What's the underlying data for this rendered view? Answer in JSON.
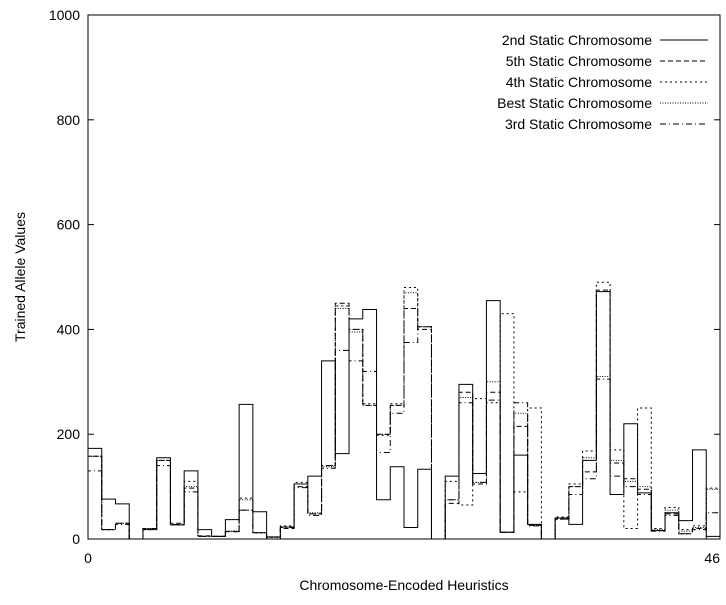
{
  "chart_data": {
    "type": "line",
    "step": true,
    "xlabel": "Chromosome-Encoded Heuristics",
    "ylabel": "Trained Allele Values",
    "xlim": [
      0,
      46
    ],
    "ylim": [
      0,
      1000
    ],
    "x_ticks": [
      "0",
      "46"
    ],
    "y_ticks": [
      "0",
      "200",
      "400",
      "600",
      "800",
      "1000"
    ],
    "grid": false,
    "legend_position": "top-right",
    "series": [
      {
        "name": "2nd Static Chromosome",
        "dash": "solid",
        "values": [
          173,
          76,
          67,
          0,
          18,
          155,
          27,
          130,
          18,
          5,
          37,
          257,
          52,
          4,
          23,
          105,
          120,
          340,
          163,
          420,
          438,
          75,
          138,
          22,
          133,
          0,
          120,
          295,
          125,
          455,
          13,
          160,
          28,
          0,
          40,
          28,
          150,
          472,
          85,
          220,
          88,
          16,
          50,
          35,
          170,
          5
        ]
      },
      {
        "name": "5th Static Chromosome",
        "dash": "dashed",
        "values": [
          158,
          18,
          30,
          0,
          18,
          150,
          30,
          97,
          6,
          5,
          14,
          55,
          12,
          0,
          20,
          100,
          48,
          140,
          450,
          400,
          255,
          200,
          255,
          440,
          400,
          0,
          68,
          280,
          105,
          280,
          13,
          215,
          26,
          0,
          38,
          100,
          128,
          475,
          145,
          115,
          95,
          16,
          48,
          10,
          20,
          0
        ]
      },
      {
        "name": "4th Static Chromosome",
        "dash": "dotted",
        "values": [
          158,
          18,
          30,
          0,
          20,
          150,
          27,
          110,
          5,
          5,
          15,
          78,
          12,
          3,
          25,
          108,
          48,
          140,
          445,
          400,
          258,
          198,
          258,
          480,
          405,
          0,
          110,
          65,
          268,
          260,
          430,
          90,
          250,
          0,
          42,
          105,
          168,
          490,
          170,
          20,
          250,
          20,
          60,
          18,
          25,
          97
        ]
      },
      {
        "name": "Best Static Chromosome",
        "dash": "fine-dotted",
        "values": [
          158,
          18,
          30,
          0,
          20,
          150,
          27,
          100,
          5,
          5,
          15,
          75,
          12,
          3,
          23,
          105,
          50,
          138,
          440,
          395,
          255,
          200,
          255,
          470,
          405,
          0,
          75,
          270,
          108,
          300,
          13,
          240,
          27,
          0,
          40,
          100,
          155,
          310,
          150,
          110,
          100,
          18,
          55,
          15,
          22,
          95
        ]
      },
      {
        "name": "3rd Static Chromosome",
        "dash": "dash-dot",
        "values": [
          130,
          18,
          28,
          0,
          20,
          140,
          28,
          90,
          5,
          5,
          14,
          55,
          12,
          0,
          22,
          98,
          45,
          135,
          360,
          340,
          320,
          165,
          240,
          375,
          405,
          0,
          75,
          260,
          108,
          265,
          13,
          260,
          25,
          0,
          38,
          85,
          115,
          305,
          120,
          100,
          85,
          15,
          45,
          10,
          18,
          50
        ]
      }
    ]
  }
}
